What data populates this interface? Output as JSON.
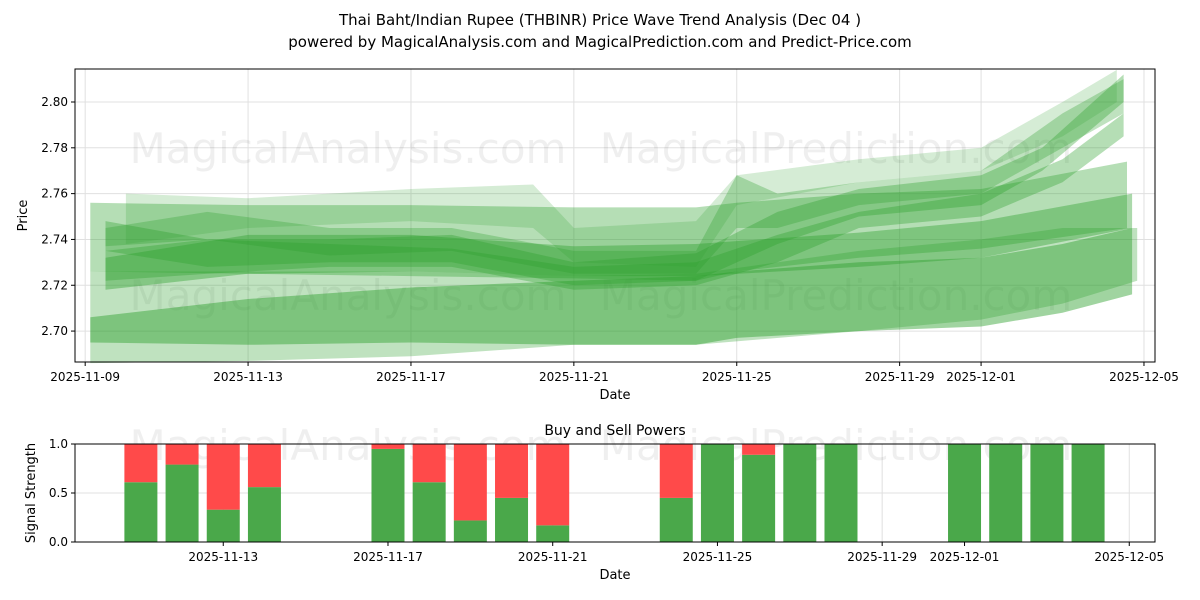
{
  "title_line1": "Thai Baht/Indian Rupee (THBINR) Price Wave Trend Analysis (Dec 04 )",
  "title_line2": "powered by MagicalAnalysis.com and MagicalPrediction.com and Predict-Price.com",
  "watermarks": [
    "MagicalAnalysis.com",
    "MagicalPrediction.com"
  ],
  "chart_data": [
    {
      "type": "area",
      "title": "",
      "xlabel": "Date",
      "ylabel": "Price",
      "xlim": [
        "2025-11-08T18:00",
        "2025-12-05T06:30"
      ],
      "ylim": [
        2.6865,
        2.8144
      ],
      "grid": true,
      "xticks": [
        "2025-11-09",
        "2025-11-13",
        "2025-11-17",
        "2025-11-21",
        "2025-11-25",
        "2025-11-29",
        "2025-12-01",
        "2025-12-05"
      ],
      "yticks": [
        "2.70",
        "2.72",
        "2.74",
        "2.76",
        "2.78",
        "2.80"
      ],
      "color": "#2ca02c",
      "bands": [
        {
          "opacity": 0.3,
          "points": [
            [
              "2025-11-09T03:00",
              2.686,
              2.726
            ],
            [
              "2025-11-13",
              2.687,
              2.726
            ],
            [
              "2025-11-17",
              2.689,
              2.726
            ],
            [
              "2025-11-21",
              2.694,
              2.724
            ],
            [
              "2025-11-24",
              2.694,
              2.725
            ],
            [
              "2025-11-28",
              2.7,
              2.735
            ],
            [
              "2025-12-01",
              2.705,
              2.74
            ],
            [
              "2025-12-03",
              2.712,
              2.745
            ],
            [
              "2025-12-04T20:00",
              2.722,
              2.745
            ]
          ]
        },
        {
          "opacity": 0.45,
          "points": [
            [
              "2025-11-09T03:00",
              2.695,
              2.706
            ],
            [
              "2025-11-13",
              2.694,
              2.714
            ],
            [
              "2025-11-17",
              2.695,
              2.719
            ],
            [
              "2025-11-21",
              2.694,
              2.722
            ],
            [
              "2025-11-24",
              2.694,
              2.724
            ],
            [
              "2025-11-25",
              2.697,
              2.726
            ],
            [
              "2025-11-28",
              2.7,
              2.73
            ],
            [
              "2025-12-01",
              2.702,
              2.732
            ],
            [
              "2025-12-03",
              2.708,
              2.738
            ],
            [
              "2025-12-04T17:00",
              2.716,
              2.745
            ]
          ]
        },
        {
          "opacity": 0.35,
          "points": [
            [
              "2025-11-09T03:00",
              2.726,
              2.756
            ],
            [
              "2025-11-13",
              2.725,
              2.755
            ],
            [
              "2025-11-17",
              2.724,
              2.755
            ],
            [
              "2025-11-21",
              2.723,
              2.754
            ],
            [
              "2025-11-24",
              2.722,
              2.754
            ],
            [
              "2025-11-25",
              2.726,
              2.756
            ],
            [
              "2025-11-28",
              2.732,
              2.76
            ],
            [
              "2025-12-01",
              2.736,
              2.762
            ],
            [
              "2025-12-04T14:00",
              2.745,
              2.774
            ]
          ]
        },
        {
          "opacity": 0.4,
          "points": [
            [
              "2025-11-09T12:00",
              2.718,
              2.732
            ],
            [
              "2025-11-13",
              2.725,
              2.742
            ],
            [
              "2025-11-17",
              2.726,
              2.742
            ],
            [
              "2025-11-21",
              2.724,
              2.737
            ],
            [
              "2025-11-24",
              2.724,
              2.738
            ],
            [
              "2025-11-28",
              2.728,
              2.743
            ],
            [
              "2025-12-01",
              2.732,
              2.748
            ],
            [
              "2025-12-04T17:00",
              2.745,
              2.76
            ]
          ]
        },
        {
          "opacity": 0.35,
          "points": [
            [
              "2025-11-09T12:00",
              2.735,
              2.748
            ],
            [
              "2025-11-12",
              2.728,
              2.74
            ],
            [
              "2025-11-15",
              2.73,
              2.74
            ],
            [
              "2025-11-18",
              2.73,
              2.742
            ],
            [
              "2025-11-21",
              2.72,
              2.73
            ],
            [
              "2025-11-24",
              2.722,
              2.734
            ],
            [
              "2025-11-26",
              2.738,
              2.752
            ],
            [
              "2025-11-28",
              2.75,
              2.762
            ],
            [
              "2025-12-01",
              2.755,
              2.768
            ],
            [
              "2025-12-02T12:00",
              2.77,
              2.78
            ],
            [
              "2025-12-04T12:00",
              2.8,
              2.812
            ]
          ]
        },
        {
          "opacity": 0.3,
          "points": [
            [
              "2025-11-09T12:00",
              2.737,
              2.745
            ],
            [
              "2025-11-12",
              2.74,
              2.752
            ],
            [
              "2025-11-15",
              2.733,
              2.745
            ],
            [
              "2025-11-18",
              2.735,
              2.745
            ],
            [
              "2025-11-21",
              2.725,
              2.735
            ],
            [
              "2025-11-24",
              2.725,
              2.735
            ],
            [
              "2025-11-25",
              2.745,
              2.768
            ],
            [
              "2025-11-26",
              2.745,
              2.76
            ],
            [
              "2025-11-28",
              2.755,
              2.765
            ],
            [
              "2025-12-01",
              2.76,
              2.77
            ],
            [
              "2025-12-03",
              2.78,
              2.795
            ],
            [
              "2025-12-04T12:00",
              2.795,
              2.81
            ]
          ]
        },
        {
          "opacity": 0.35,
          "points": [
            [
              "2025-11-09T12:00",
              2.722,
              2.735
            ],
            [
              "2025-11-12",
              2.725,
              2.74
            ],
            [
              "2025-11-15",
              2.728,
              2.738
            ],
            [
              "2025-11-18",
              2.728,
              2.736
            ],
            [
              "2025-11-21",
              2.718,
              2.728
            ],
            [
              "2025-11-24",
              2.72,
              2.73
            ],
            [
              "2025-11-26",
              2.73,
              2.742
            ],
            [
              "2025-11-28",
              2.745,
              2.752
            ],
            [
              "2025-12-01",
              2.75,
              2.76
            ],
            [
              "2025-12-03",
              2.765,
              2.775
            ],
            [
              "2025-12-04T12:00",
              2.785,
              2.795
            ]
          ]
        },
        {
          "opacity": 0.2,
          "points": [
            [
              "2025-11-10",
              2.738,
              2.76
            ],
            [
              "2025-11-13",
              2.745,
              2.758
            ],
            [
              "2025-11-17",
              2.748,
              2.762
            ],
            [
              "2025-11-20",
              2.745,
              2.764
            ],
            [
              "2025-11-21",
              2.73,
              2.745
            ],
            [
              "2025-11-24",
              2.728,
              2.748
            ],
            [
              "2025-11-25",
              2.755,
              2.768
            ],
            [
              "2025-11-28",
              2.765,
              2.775
            ],
            [
              "2025-12-01",
              2.77,
              2.78
            ],
            [
              "2025-12-03",
              2.785,
              2.8
            ],
            [
              "2025-12-04T08:00",
              2.8,
              2.814
            ]
          ]
        }
      ]
    },
    {
      "type": "bar",
      "title": "Buy and Sell Powers",
      "xlabel": "Date",
      "ylabel": "Signal Strength",
      "xlim": [
        "2025-11-09T09:36",
        "2025-12-05T15:00"
      ],
      "ylim": [
        0,
        1
      ],
      "xticks": [
        "2025-11-13",
        "2025-11-17",
        "2025-11-21",
        "2025-11-25",
        "2025-11-29",
        "2025-12-01",
        "2025-12-05"
      ],
      "yticks": [
        "0.0",
        "0.5",
        "1.0"
      ],
      "buy_color": "#4aa84a",
      "sell_color": "#ff4a4a",
      "dates": [
        "2025-11-11",
        "2025-11-12",
        "2025-11-13",
        "2025-11-14",
        "2025-11-17",
        "2025-11-18",
        "2025-11-19",
        "2025-11-20",
        "2025-11-21",
        "2025-11-24",
        "2025-11-25",
        "2025-11-26",
        "2025-11-27",
        "2025-11-28",
        "2025-12-01",
        "2025-12-02",
        "2025-12-03",
        "2025-12-04"
      ],
      "buy": [
        0.61,
        0.79,
        0.33,
        0.56,
        0.95,
        0.61,
        0.22,
        0.45,
        0.17,
        0.45,
        1.0,
        0.89,
        1.0,
        1.0,
        1.0,
        1.0,
        1.0,
        1.0
      ],
      "sell": [
        0.39,
        0.21,
        0.67,
        0.44,
        0.05,
        0.39,
        0.78,
        0.55,
        0.83,
        0.55,
        0.0,
        0.11,
        0.0,
        0.0,
        0.0,
        0.0,
        0.0,
        0.0
      ]
    }
  ]
}
